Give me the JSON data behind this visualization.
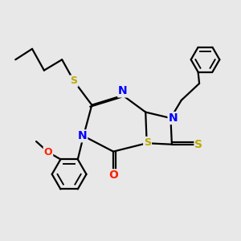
{
  "bg_color": "#e8e8e8",
  "bond_color": "#000000",
  "N_color": "#0000ff",
  "O_color": "#ff2200",
  "S_color": "#bbaa00",
  "lw": 1.6,
  "figsize": [
    3.0,
    3.0
  ],
  "dpi": 100,
  "xlim": [
    0,
    10
  ],
  "ylim": [
    0,
    10
  ]
}
